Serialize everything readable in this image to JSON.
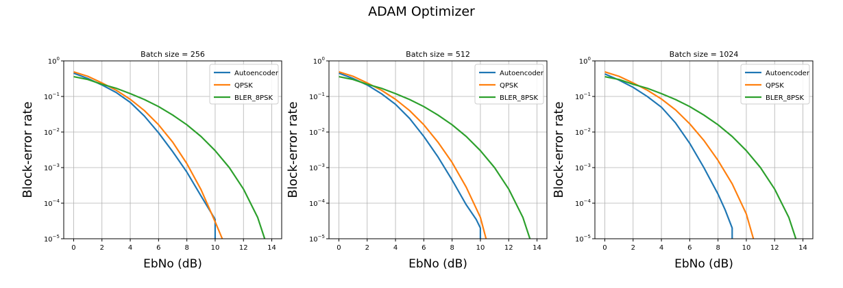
{
  "suptitle": "ADAM Optimizer",
  "colors": {
    "Autoencoder": "#1f77b4",
    "QPSK": "#ff7f0e",
    "BLER_8PSK": "#2ca02c",
    "grid": "#b0b0b0"
  },
  "chart_data": [
    {
      "type": "line",
      "title": "Batch size = 256",
      "xlabel": "EbNo (dB)",
      "ylabel": "Block-error rate",
      "yscale": "log",
      "xlim": [
        -0.7,
        14.7
      ],
      "ylim": [
        1e-05,
        1
      ],
      "xticks": [
        0,
        2,
        4,
        6,
        8,
        10,
        12,
        14
      ],
      "yticks": [
        1,
        0.1,
        0.01,
        0.001,
        0.0001,
        1e-05
      ],
      "grid": true,
      "legend_position": "top-right",
      "series": [
        {
          "name": "Autoencoder",
          "x": [
            0,
            1,
            2,
            3,
            4,
            5,
            6,
            7,
            8,
            9,
            9.5,
            10,
            10
          ],
          "y": [
            0.45,
            0.32,
            0.21,
            0.13,
            0.068,
            0.028,
            0.0095,
            0.0028,
            0.00075,
            0.00016,
            7.5e-05,
            3.5e-05,
            1e-05
          ]
        },
        {
          "name": "QPSK",
          "x": [
            0,
            1,
            2,
            3,
            4,
            5,
            6,
            7,
            8,
            9,
            10,
            10.5
          ],
          "y": [
            0.49,
            0.37,
            0.24,
            0.15,
            0.083,
            0.04,
            0.016,
            0.0052,
            0.0013,
            0.00024,
            3e-05,
            1e-05
          ]
        },
        {
          "name": "BLER_8PSK",
          "x": [
            0,
            1,
            2,
            3,
            4,
            5,
            6,
            7,
            8,
            9,
            10,
            11,
            12,
            13,
            13.5
          ],
          "y": [
            0.36,
            0.3,
            0.22,
            0.17,
            0.12,
            0.082,
            0.052,
            0.03,
            0.016,
            0.0075,
            0.003,
            0.001,
            0.00025,
            4e-05,
            1e-05
          ]
        }
      ]
    },
    {
      "type": "line",
      "title": "Batch size = 512",
      "xlabel": "EbNo (dB)",
      "ylabel": "Block-error rate",
      "yscale": "log",
      "xlim": [
        -0.7,
        14.7
      ],
      "ylim": [
        1e-05,
        1
      ],
      "xticks": [
        0,
        2,
        4,
        6,
        8,
        10,
        12,
        14
      ],
      "yticks": [
        1,
        0.1,
        0.01,
        0.001,
        0.0001,
        1e-05
      ],
      "grid": true,
      "legend_position": "top-right",
      "series": [
        {
          "name": "Autoencoder",
          "x": [
            0,
            1,
            2,
            3,
            4,
            5,
            6,
            7,
            8,
            9,
            9.7,
            10,
            10
          ],
          "y": [
            0.45,
            0.32,
            0.21,
            0.12,
            0.06,
            0.024,
            0.0075,
            0.002,
            0.00045,
            9e-05,
            3.5e-05,
            2e-05,
            1e-05
          ]
        },
        {
          "name": "QPSK",
          "x": [
            0,
            1,
            2,
            3,
            4,
            5,
            6,
            7,
            8,
            9,
            10,
            10.4
          ],
          "y": [
            0.49,
            0.37,
            0.24,
            0.15,
            0.083,
            0.04,
            0.016,
            0.0052,
            0.0014,
            0.00028,
            4e-05,
            1e-05
          ]
        },
        {
          "name": "BLER_8PSK",
          "x": [
            0,
            1,
            2,
            3,
            4,
            5,
            6,
            7,
            8,
            9,
            10,
            11,
            12,
            13,
            13.5
          ],
          "y": [
            0.36,
            0.3,
            0.22,
            0.17,
            0.12,
            0.082,
            0.052,
            0.03,
            0.016,
            0.0075,
            0.003,
            0.001,
            0.00025,
            4e-05,
            1e-05
          ]
        }
      ]
    },
    {
      "type": "line",
      "title": "Batch size = 1024",
      "xlabel": "EbNo (dB)",
      "ylabel": "Block-error rate",
      "yscale": "log",
      "xlim": [
        -0.7,
        14.7
      ],
      "ylim": [
        1e-05,
        1
      ],
      "xticks": [
        0,
        2,
        4,
        6,
        8,
        10,
        12,
        14
      ],
      "yticks": [
        1,
        0.1,
        0.01,
        0.001,
        0.0001,
        1e-05
      ],
      "grid": true,
      "legend_position": "top-right",
      "series": [
        {
          "name": "Autoencoder",
          "x": [
            0,
            1,
            2,
            3,
            4,
            5,
            6,
            7,
            8,
            8.5,
            9,
            9
          ],
          "y": [
            0.43,
            0.29,
            0.18,
            0.1,
            0.05,
            0.018,
            0.0048,
            0.001,
            0.00018,
            6.5e-05,
            2e-05,
            1e-05
          ]
        },
        {
          "name": "QPSK",
          "x": [
            0,
            1,
            2,
            3,
            4,
            5,
            6,
            7,
            8,
            9,
            10,
            10.5
          ],
          "y": [
            0.49,
            0.37,
            0.24,
            0.15,
            0.085,
            0.042,
            0.017,
            0.0058,
            0.0016,
            0.00035,
            5e-05,
            1e-05
          ]
        },
        {
          "name": "BLER_8PSK",
          "x": [
            0,
            1,
            2,
            3,
            4,
            5,
            6,
            7,
            8,
            9,
            10,
            11,
            12,
            13,
            13.5
          ],
          "y": [
            0.36,
            0.3,
            0.22,
            0.17,
            0.12,
            0.082,
            0.052,
            0.03,
            0.016,
            0.0075,
            0.003,
            0.001,
            0.00025,
            4e-05,
            1e-05
          ]
        }
      ]
    }
  ]
}
